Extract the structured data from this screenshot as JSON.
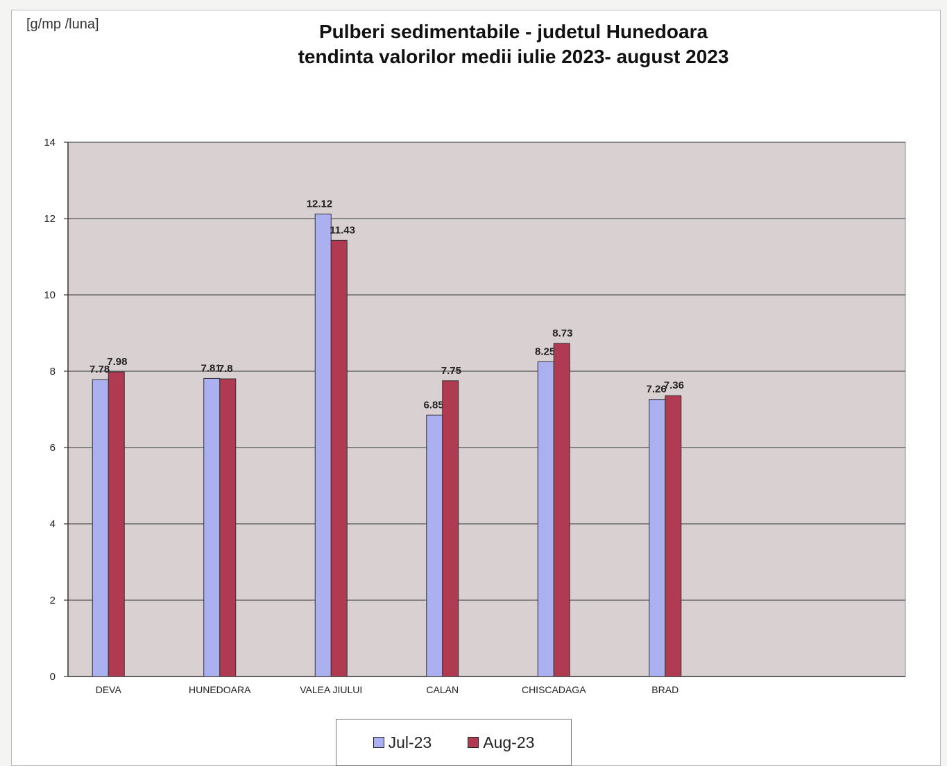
{
  "chart_data": {
    "type": "bar",
    "title_line1": "Pulberi sedimentabile - judetul Hunedoara",
    "title_line2": "tendinta valorilor medii iulie  2023- august 2023",
    "unit_label": "[g/mp /luna]",
    "categories": [
      "DEVA",
      "HUNEDOARA",
      "VALEA JIULUI",
      "CALAN",
      "CHISCADAGA",
      "BRAD"
    ],
    "series": [
      {
        "name": "Jul-23",
        "color": "#aab0f0",
        "values": [
          7.78,
          7.81,
          12.12,
          6.85,
          8.25,
          7.26
        ],
        "labels": [
          "7.78",
          "7.81",
          "12.12",
          "6.85",
          "8.25",
          "7.26"
        ]
      },
      {
        "name": "Aug-23",
        "color": "#b03a52",
        "values": [
          7.98,
          7.8,
          11.43,
          7.75,
          8.73,
          7.36
        ],
        "labels": [
          "7.98",
          "7.8",
          "11.43",
          "7.75",
          "8.73",
          "7.36"
        ]
      }
    ],
    "ylim": [
      0,
      14
    ],
    "yticks": [
      0,
      2,
      4,
      6,
      8,
      10,
      12,
      14
    ],
    "grid": true,
    "plot_background": "#d9d0d2",
    "legend_position": "bottom"
  }
}
